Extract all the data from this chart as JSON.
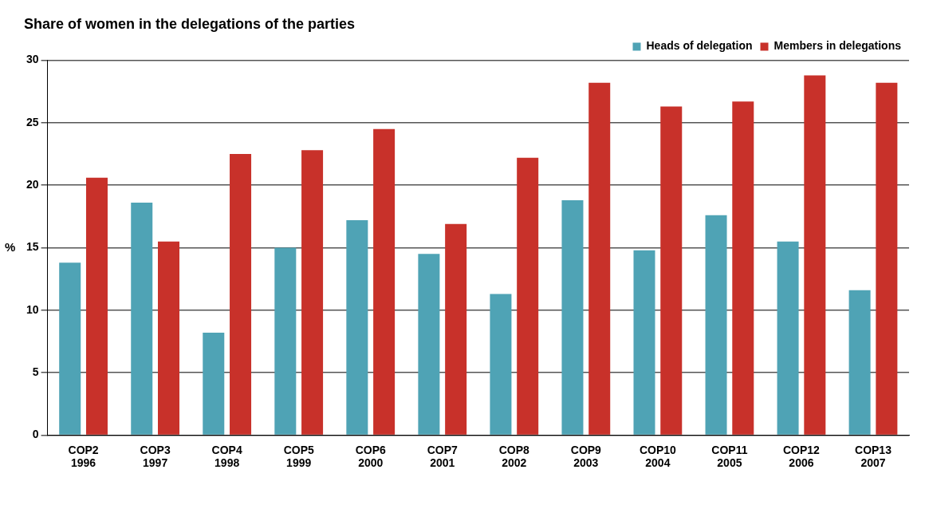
{
  "chart_data": {
    "type": "bar",
    "title": "Share of women in the delegations of the parties",
    "ylabel": "%",
    "categories": [
      "COP2\n1996",
      "COP3\n1997",
      "COP4\n1998",
      "COP5\n1999",
      "COP6\n2000",
      "COP7\n2001",
      "COP8\n2002",
      "COP9\n2003",
      "COP10\n2004",
      "COP11\n2005",
      "COP12\n2006",
      "COP13\n2007"
    ],
    "series": [
      {
        "name": "Heads of delegation",
        "color": "#4fa3b5",
        "values": [
          13.8,
          18.6,
          8.2,
          15.0,
          17.2,
          14.5,
          11.3,
          18.8,
          14.8,
          17.6,
          15.5,
          11.6
        ]
      },
      {
        "name": "Members in delegations",
        "color": "#c8312a",
        "values": [
          20.6,
          15.5,
          22.5,
          22.8,
          24.5,
          16.9,
          22.2,
          28.2,
          26.3,
          26.7,
          28.8,
          28.2
        ]
      }
    ],
    "ylim": [
      0,
      30
    ],
    "yticks": [
      0,
      5,
      10,
      15,
      20,
      25,
      30
    ],
    "grid": "y",
    "legend": "top right"
  }
}
